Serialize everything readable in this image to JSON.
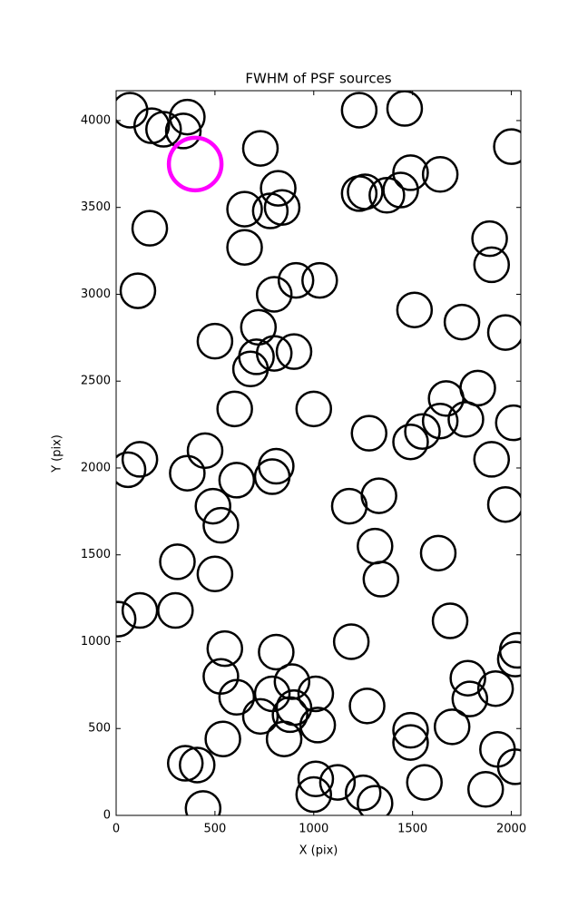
{
  "chart_data": {
    "type": "scatter",
    "title": "FWHM of PSF sources",
    "x_label": "X (pix)",
    "y_label": "Y (pix)",
    "xlim": [
      0,
      2048
    ],
    "ylim": [
      0,
      4172
    ],
    "xticks": [
      0,
      500,
      1000,
      1500,
      2000
    ],
    "yticks": [
      0,
      500,
      1000,
      1500,
      2000,
      2500,
      3000,
      3500,
      4000
    ],
    "series": [
      {
        "color": "#000000",
        "x": [
          70,
          180,
          360,
          240,
          340,
          730,
          820,
          840,
          650,
          780,
          650,
          170,
          110,
          800,
          910,
          1030,
          1510,
          1750,
          1970,
          1890,
          1900,
          2000,
          1230,
          1460,
          1640,
          1490,
          1440,
          1370,
          1230,
          1260,
          500,
          720,
          710,
          800,
          900,
          680,
          600,
          1000,
          1670,
          1830,
          1640,
          1550,
          1490,
          1770,
          1900,
          2010,
          1970,
          1280,
          1330,
          1180,
          1310,
          1340,
          1630,
          1690,
          450,
          360,
          120,
          60,
          610,
          810,
          790,
          490,
          530,
          310,
          500,
          10,
          120,
          300,
          550,
          530,
          610,
          540,
          810,
          890,
          1010,
          790,
          730,
          880,
          900,
          1020,
          850,
          350,
          410,
          440,
          1000,
          1010,
          1120,
          1250,
          1310,
          1190,
          1270,
          1490,
          1490,
          1560,
          1870,
          1930,
          1790,
          1920,
          1780,
          1700,
          2030,
          2020,
          2020
        ],
        "y": [
          4060,
          3970,
          4020,
          3950,
          3940,
          3840,
          3610,
          3500,
          3490,
          3480,
          3270,
          3380,
          3020,
          3000,
          3080,
          3080,
          2910,
          2840,
          2780,
          3320,
          3170,
          3850,
          4060,
          4070,
          3690,
          3700,
          3600,
          3570,
          3580,
          3590,
          2730,
          2810,
          2640,
          2660,
          2670,
          2570,
          2340,
          2340,
          2400,
          2460,
          2270,
          2210,
          2150,
          2280,
          2050,
          2260,
          1790,
          2200,
          1840,
          1780,
          1550,
          1360,
          1510,
          1120,
          2100,
          1970,
          2050,
          1990,
          1930,
          2010,
          1950,
          1780,
          1670,
          1460,
          1390,
          1130,
          1180,
          1180,
          960,
          800,
          680,
          440,
          940,
          770,
          700,
          700,
          570,
          580,
          620,
          520,
          440,
          300,
          290,
          40,
          120,
          210,
          190,
          130,
          70,
          1000,
          630,
          490,
          420,
          190,
          150,
          380,
          670,
          730,
          790,
          510,
          950,
          900,
          280
        ]
      },
      {
        "color": "#ff00ff",
        "x": [
          400
        ],
        "y": [
          3750
        ]
      }
    ]
  }
}
